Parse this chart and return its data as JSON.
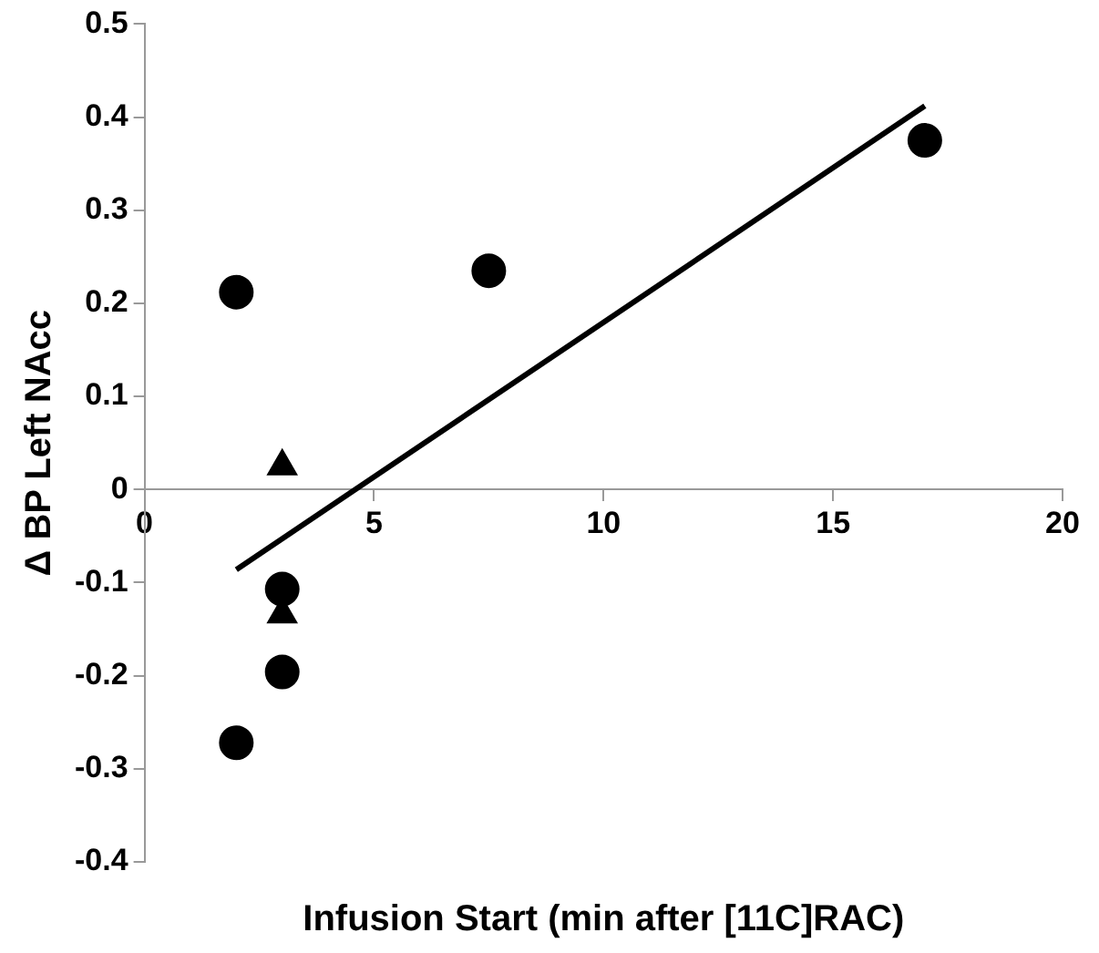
{
  "chart_data": {
    "type": "scatter",
    "xlabel": "Infusion Start (min after [11C]RAC)",
    "ylabel": "Δ BP Left NAcc",
    "xlim": [
      0,
      20
    ],
    "xticks": [
      0,
      5,
      10,
      15,
      20
    ],
    "ylim": [
      -0.4,
      0.5
    ],
    "yticks": [
      -0.4,
      -0.3,
      -0.2,
      -0.1,
      0,
      0.1,
      0.2,
      0.3,
      0.4,
      0.5
    ],
    "grid": false,
    "legend": false,
    "series": [
      {
        "type": "scatter",
        "marker": "circle",
        "color": "#000000",
        "x": [
          2,
          7.5,
          17,
          3,
          3,
          2
        ],
        "values": [
          0.212,
          0.235,
          0.375,
          -0.107,
          -0.196,
          -0.272
        ]
      },
      {
        "type": "scatter",
        "marker": "triangle",
        "color": "#000000",
        "x": [
          3,
          3
        ],
        "values": [
          0.025,
          -0.134
        ]
      },
      {
        "type": "line",
        "marker": "none",
        "color": "#000000",
        "x": [
          2,
          17
        ],
        "values": [
          -0.086,
          0.412
        ]
      }
    ]
  }
}
